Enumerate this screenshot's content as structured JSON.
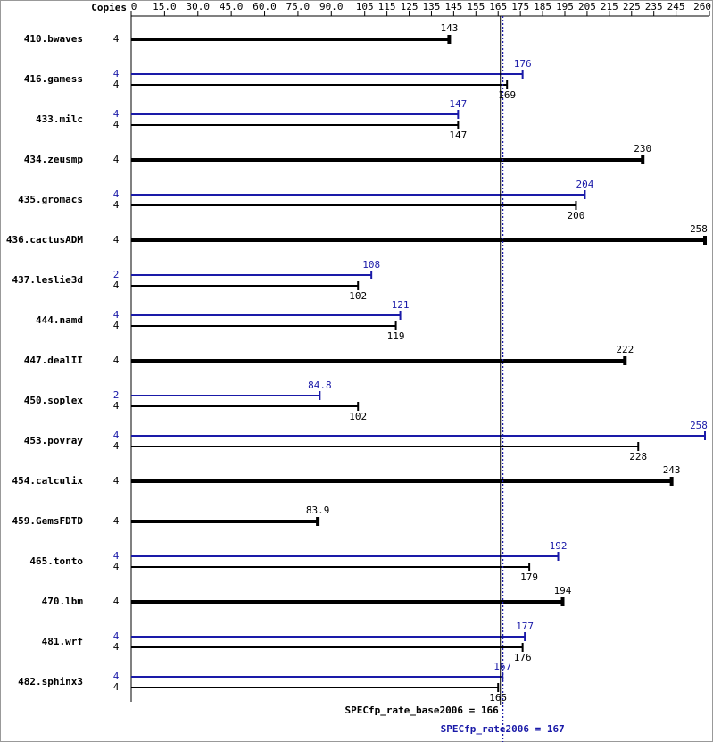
{
  "chart_data": {
    "type": "bar",
    "orientation": "horizontal",
    "copies_label": "Copies",
    "categories": [
      "410.bwaves",
      "416.gamess",
      "433.milc",
      "434.zeusmp",
      "435.gromacs",
      "436.cactusADM",
      "437.leslie3d",
      "444.namd",
      "447.dealII",
      "450.soplex",
      "453.povray",
      "454.calculix",
      "459.GemsFDTD",
      "465.tonto",
      "470.lbm",
      "481.wrf",
      "482.sphinx3"
    ],
    "series": [
      {
        "color": "#000000",
        "copies": [
          4,
          4,
          4,
          4,
          4,
          4,
          4,
          4,
          4,
          4,
          4,
          4,
          4,
          4,
          4,
          4,
          4
        ],
        "values": [
          143,
          169,
          147,
          230,
          200,
          258,
          102,
          119,
          222,
          102,
          228,
          243,
          83.9,
          179,
          194,
          176,
          165
        ]
      },
      {
        "color": "#1a1aa8",
        "copies": [
          null,
          4,
          4,
          null,
          4,
          null,
          2,
          4,
          null,
          2,
          4,
          null,
          null,
          4,
          null,
          4,
          4
        ],
        "values": [
          null,
          176,
          147,
          null,
          204,
          null,
          108,
          121,
          null,
          84.8,
          258,
          null,
          null,
          192,
          null,
          177,
          167
        ]
      }
    ],
    "xlim": [
      0,
      260
    ],
    "xticks": [
      0,
      {
        "value": 15,
        "label": "15.0"
      },
      {
        "value": 30,
        "label": "30.0"
      },
      {
        "value": 45,
        "label": "45.0"
      },
      {
        "value": 60,
        "label": "60.0"
      },
      {
        "value": 75,
        "label": "75.0"
      },
      {
        "value": 90,
        "label": "90.0"
      },
      105,
      115,
      125,
      135,
      145,
      155,
      165,
      175,
      185,
      195,
      205,
      215,
      225,
      235,
      245,
      260
    ],
    "reference_lines": [
      {
        "value": 166,
        "label": "SPECfp_rate_base2006 = 166",
        "color": "#000000",
        "dashed": false
      },
      {
        "value": 167,
        "label": "SPECfp_rate2006 = 167",
        "color": "#1a1aa8",
        "dashed": true
      }
    ]
  }
}
